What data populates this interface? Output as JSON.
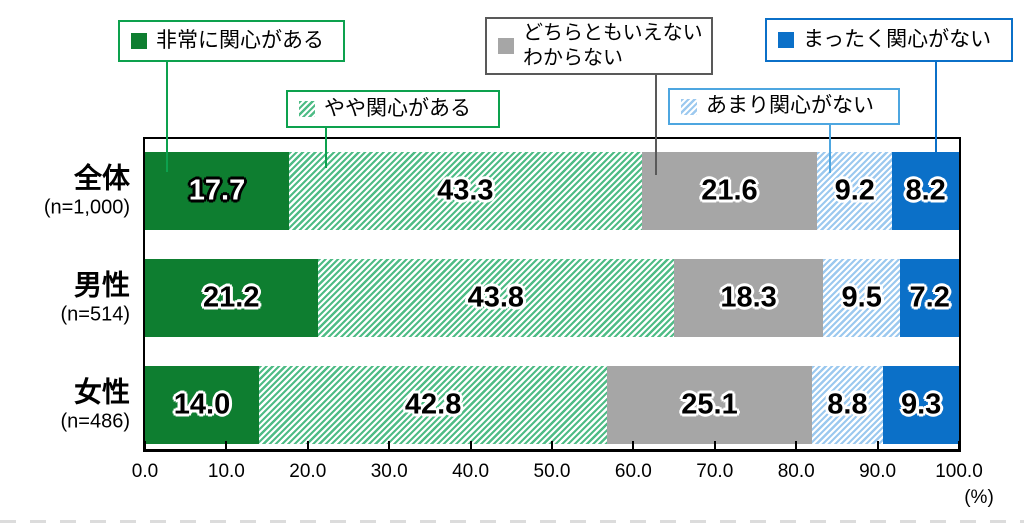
{
  "canvas": {
    "background": "#ffffff"
  },
  "legend": {
    "items": [
      {
        "label": "非常に関心がある"
      },
      {
        "label": "やや関心がある"
      },
      {
        "lines": [
          "どちらともいえない",
          "わからない"
        ]
      },
      {
        "label": "あまり関心がない"
      },
      {
        "label": "まったく関心がない"
      }
    ]
  },
  "chart_data": {
    "type": "bar",
    "orientation": "horizontal",
    "stacked": true,
    "grid": false,
    "unit": "(%)",
    "xlim": [
      0,
      100
    ],
    "x_ticks": [
      "0.0",
      "10.0",
      "20.0",
      "30.0",
      "40.0",
      "50.0",
      "60.0",
      "70.0",
      "80.0",
      "90.0",
      "100.0"
    ],
    "categories": [
      "全体",
      "男性",
      "女性"
    ],
    "category_sublabels": [
      "(n=1,000)",
      "(n=514)",
      "(n=486)"
    ],
    "series": [
      {
        "name": "非常に関心がある",
        "fill": "solid",
        "color": "#0E7E30",
        "accent": "#0DA14E",
        "values": [
          17.7,
          21.2,
          14.0
        ]
      },
      {
        "name": "やや関心がある",
        "fill": "hatch",
        "color": "#4FBC86",
        "accent": "#0DA14E",
        "values": [
          43.3,
          43.8,
          42.8
        ]
      },
      {
        "name": "どちらともいえない・わからない",
        "fill": "solid",
        "color": "#A6A6A6",
        "accent": "#595959",
        "values": [
          21.6,
          18.3,
          25.1
        ]
      },
      {
        "name": "あまり関心がない",
        "fill": "hatch",
        "color": "#9CC9EF",
        "accent": "#4DA6E0",
        "values": [
          9.2,
          9.5,
          8.8
        ]
      },
      {
        "name": "まったく関心がない",
        "fill": "solid",
        "color": "#0B70C8",
        "accent": "#0B70C8",
        "values": [
          8.2,
          7.2,
          9.3
        ]
      }
    ],
    "light_value_cells": [
      [
        0,
        0
      ]
    ]
  }
}
